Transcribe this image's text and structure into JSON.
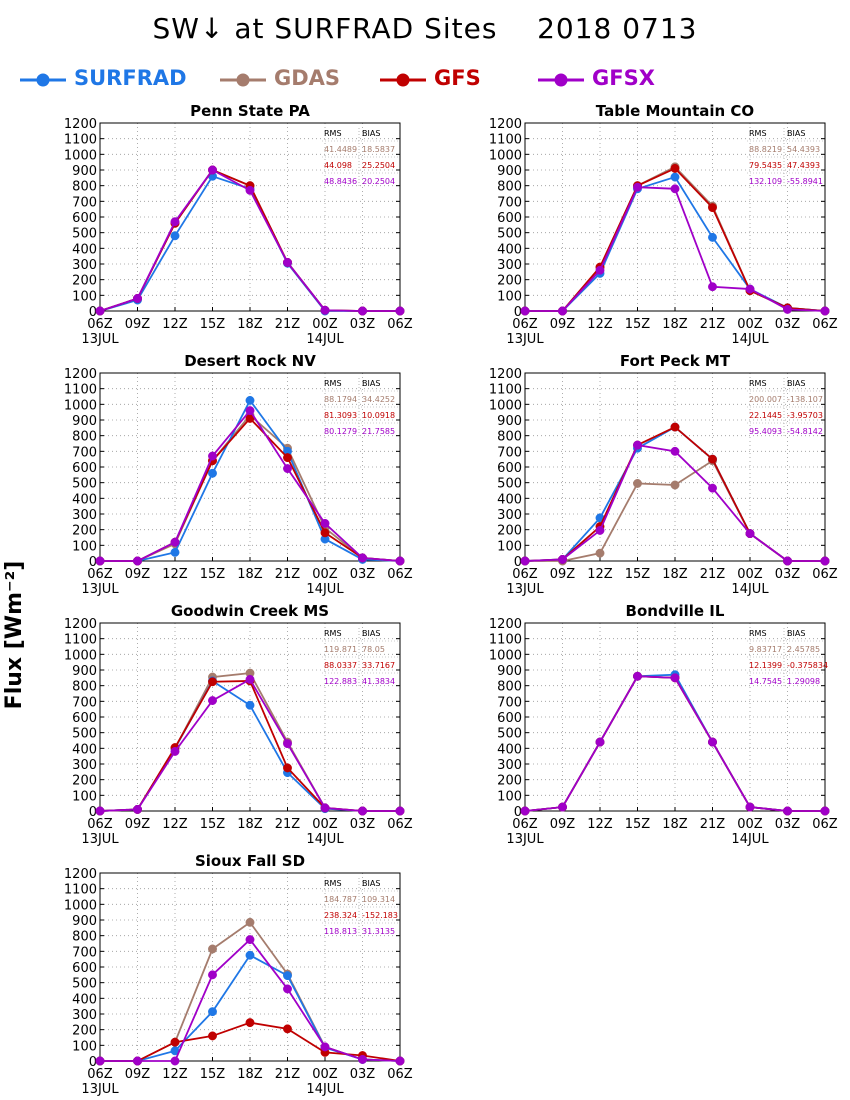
{
  "title": {
    "text": "SW↓ at SURFRAD Sites",
    "date": "2018 0713"
  },
  "ylabel": "Flux [Wm⁻²]",
  "colors": {
    "SURFRAD": "#1f77e6",
    "GDAS": "#a57c6d",
    "GFS": "#c00000",
    "GFSX": "#a000c8",
    "grid": "#999999"
  },
  "legend": [
    {
      "name": "SURFRAD",
      "color": "#1f77e6"
    },
    {
      "name": "GDAS",
      "color": "#a57c6d"
    },
    {
      "name": "GFS",
      "color": "#c00000"
    },
    {
      "name": "GFSX",
      "color": "#a000c8"
    }
  ],
  "stats_header": {
    "rms": "RMS",
    "bias": "BIAS"
  },
  "chart_data": [
    {
      "type": "line",
      "title": "Penn State PA",
      "x": [
        "06Z",
        "09Z",
        "12Z",
        "15Z",
        "18Z",
        "21Z",
        "00Z",
        "03Z",
        "06Z"
      ],
      "date_labels": [
        "13JUL",
        "14JUL"
      ],
      "yticks": [
        0,
        100,
        200,
        300,
        400,
        500,
        600,
        700,
        800,
        900,
        1000,
        1100,
        1200
      ],
      "ylim": [
        0,
        1200
      ],
      "grid": true,
      "series": [
        {
          "name": "SURFRAD",
          "values": [
            0,
            70,
            480,
            860,
            780,
            305,
            0,
            0,
            0
          ]
        },
        {
          "name": "GDAS",
          "values": [
            0,
            80,
            560,
            900,
            800,
            310,
            5,
            0,
            0
          ]
        },
        {
          "name": "GFS",
          "values": [
            0,
            80,
            560,
            900,
            800,
            310,
            5,
            0,
            0
          ]
        },
        {
          "name": "GFSX",
          "values": [
            0,
            80,
            570,
            900,
            770,
            310,
            5,
            0,
            0
          ]
        }
      ],
      "stats": [
        {
          "name": "GDAS",
          "rms": "41.4489",
          "bias": "18.5837"
        },
        {
          "name": "GFS",
          "rms": "44.098",
          "bias": "25.2504"
        },
        {
          "name": "GFSX",
          "rms": "48.8436",
          "bias": "20.2504"
        }
      ]
    },
    {
      "type": "line",
      "title": "Table Mountain CO",
      "x": [
        "06Z",
        "09Z",
        "12Z",
        "15Z",
        "18Z",
        "21Z",
        "00Z",
        "03Z",
        "06Z"
      ],
      "date_labels": [
        "13JUL",
        "14JUL"
      ],
      "yticks": [
        0,
        100,
        200,
        300,
        400,
        500,
        600,
        700,
        800,
        900,
        1000,
        1100,
        1200
      ],
      "ylim": [
        0,
        1200
      ],
      "grid": true,
      "series": [
        {
          "name": "SURFRAD",
          "values": [
            0,
            0,
            240,
            780,
            855,
            470,
            140,
            20,
            0
          ]
        },
        {
          "name": "GDAS",
          "values": [
            0,
            0,
            280,
            800,
            920,
            670,
            130,
            20,
            0
          ]
        },
        {
          "name": "GFS",
          "values": [
            0,
            0,
            280,
            800,
            910,
            660,
            130,
            20,
            0
          ]
        },
        {
          "name": "GFSX",
          "values": [
            0,
            0,
            260,
            790,
            780,
            155,
            140,
            10,
            0
          ]
        }
      ],
      "stats": [
        {
          "name": "GDAS",
          "rms": "88.8219",
          "bias": "54.4393"
        },
        {
          "name": "GFS",
          "rms": "79.5435",
          "bias": "47.4393"
        },
        {
          "name": "GFSX",
          "rms": "132.109",
          "bias": "-55.8941"
        }
      ]
    },
    {
      "type": "line",
      "title": "Desert Rock NV",
      "x": [
        "06Z",
        "09Z",
        "12Z",
        "15Z",
        "18Z",
        "21Z",
        "00Z",
        "03Z",
        "06Z"
      ],
      "date_labels": [
        "13JUL",
        "14JUL"
      ],
      "yticks": [
        0,
        100,
        200,
        300,
        400,
        500,
        600,
        700,
        800,
        900,
        1000,
        1100,
        1200
      ],
      "ylim": [
        0,
        1200
      ],
      "grid": true,
      "series": [
        {
          "name": "SURFRAD",
          "values": [
            0,
            0,
            55,
            560,
            1025,
            700,
            140,
            10,
            0
          ]
        },
        {
          "name": "GDAS",
          "values": [
            0,
            0,
            110,
            640,
            930,
            720,
            210,
            20,
            0
          ]
        },
        {
          "name": "GFS",
          "values": [
            0,
            0,
            120,
            640,
            910,
            660,
            180,
            20,
            0
          ]
        },
        {
          "name": "GFSX",
          "values": [
            0,
            0,
            120,
            670,
            960,
            590,
            240,
            20,
            0
          ]
        }
      ],
      "stats": [
        {
          "name": "GDAS",
          "rms": "88.1794",
          "bias": "34.4252"
        },
        {
          "name": "GFS",
          "rms": "81.3093",
          "bias": "10.0918"
        },
        {
          "name": "GFSX",
          "rms": "80.1279",
          "bias": "21.7585"
        }
      ]
    },
    {
      "type": "line",
      "title": "Fort Peck MT",
      "x": [
        "06Z",
        "09Z",
        "12Z",
        "15Z",
        "18Z",
        "21Z",
        "00Z",
        "03Z",
        "06Z"
      ],
      "date_labels": [
        "13JUL",
        "14JUL"
      ],
      "yticks": [
        0,
        100,
        200,
        300,
        400,
        500,
        600,
        700,
        800,
        900,
        1000,
        1100,
        1200
      ],
      "ylim": [
        0,
        1200
      ],
      "grid": true,
      "series": [
        {
          "name": "SURFRAD",
          "values": [
            0,
            10,
            275,
            720,
            855,
            650,
            175,
            0,
            0
          ]
        },
        {
          "name": "GDAS",
          "values": [
            0,
            0,
            50,
            495,
            485,
            640,
            175,
            0,
            0
          ]
        },
        {
          "name": "GFS",
          "values": [
            0,
            10,
            220,
            740,
            855,
            650,
            175,
            0,
            0
          ]
        },
        {
          "name": "GFSX",
          "values": [
            0,
            10,
            195,
            740,
            700,
            465,
            175,
            0,
            0
          ]
        }
      ],
      "stats": [
        {
          "name": "GDAS",
          "rms": "200.007",
          "bias": "-138.107"
        },
        {
          "name": "GFS",
          "rms": "22.1445",
          "bias": "-3.95703"
        },
        {
          "name": "GFSX",
          "rms": "95.4093",
          "bias": "-54.8142"
        }
      ]
    },
    {
      "type": "line",
      "title": "Goodwin Creek MS",
      "x": [
        "06Z",
        "09Z",
        "12Z",
        "15Z",
        "18Z",
        "21Z",
        "00Z",
        "03Z",
        "06Z"
      ],
      "date_labels": [
        "13JUL",
        "14JUL"
      ],
      "yticks": [
        0,
        100,
        200,
        300,
        400,
        500,
        600,
        700,
        800,
        900,
        1000,
        1100,
        1200
      ],
      "ylim": [
        0,
        1200
      ],
      "grid": true,
      "series": [
        {
          "name": "SURFRAD",
          "values": [
            0,
            10,
            400,
            830,
            675,
            245,
            15,
            0,
            0
          ]
        },
        {
          "name": "GDAS",
          "values": [
            0,
            10,
            400,
            855,
            880,
            440,
            20,
            0,
            0
          ]
        },
        {
          "name": "GFS",
          "values": [
            0,
            10,
            405,
            825,
            830,
            275,
            20,
            0,
            0
          ]
        },
        {
          "name": "GFSX",
          "values": [
            0,
            10,
            380,
            705,
            840,
            430,
            20,
            0,
            0
          ]
        }
      ],
      "stats": [
        {
          "name": "GDAS",
          "rms": "119.871",
          "bias": "78.05"
        },
        {
          "name": "GFS",
          "rms": "88.0337",
          "bias": "33.7167"
        },
        {
          "name": "GFSX",
          "rms": "122.883",
          "bias": "41.3834"
        }
      ]
    },
    {
      "type": "line",
      "title": "Bondville IL",
      "x": [
        "06Z",
        "09Z",
        "12Z",
        "15Z",
        "18Z",
        "21Z",
        "00Z",
        "03Z",
        "06Z"
      ],
      "date_labels": [
        "13JUL",
        "14JUL"
      ],
      "yticks": [
        0,
        100,
        200,
        300,
        400,
        500,
        600,
        700,
        800,
        900,
        1000,
        1100,
        1200
      ],
      "ylim": [
        0,
        1200
      ],
      "grid": true,
      "series": [
        {
          "name": "SURFRAD",
          "values": [
            0,
            25,
            440,
            860,
            870,
            440,
            25,
            0,
            0
          ]
        },
        {
          "name": "GDAS",
          "values": [
            0,
            25,
            440,
            860,
            850,
            440,
            25,
            0,
            0
          ]
        },
        {
          "name": "GFS",
          "values": [
            0,
            25,
            440,
            860,
            850,
            440,
            25,
            0,
            0
          ]
        },
        {
          "name": "GFSX",
          "values": [
            0,
            25,
            440,
            860,
            850,
            440,
            25,
            0,
            0
          ]
        }
      ],
      "stats": [
        {
          "name": "GDAS",
          "rms": "9.83717",
          "bias": "2.45785"
        },
        {
          "name": "GFS",
          "rms": "12.1399",
          "bias": "-0.375834"
        },
        {
          "name": "GFSX",
          "rms": "14.7545",
          "bias": "1.29098"
        }
      ]
    },
    {
      "type": "line",
      "title": "Sioux Fall SD",
      "x": [
        "06Z",
        "09Z",
        "12Z",
        "15Z",
        "18Z",
        "21Z",
        "00Z",
        "03Z",
        "06Z"
      ],
      "date_labels": [
        "13JUL",
        "14JUL"
      ],
      "yticks": [
        0,
        100,
        200,
        300,
        400,
        500,
        600,
        700,
        800,
        900,
        1000,
        1100,
        1200
      ],
      "ylim": [
        0,
        1200
      ],
      "grid": true,
      "series": [
        {
          "name": "SURFRAD",
          "values": [
            0,
            0,
            65,
            315,
            675,
            545,
            85,
            10,
            0
          ]
        },
        {
          "name": "GDAS",
          "values": [
            0,
            0,
            120,
            715,
            885,
            555,
            90,
            10,
            0
          ]
        },
        {
          "name": "GFS",
          "values": [
            0,
            0,
            120,
            160,
            245,
            205,
            55,
            35,
            0
          ]
        },
        {
          "name": "GFSX",
          "values": [
            0,
            0,
            0,
            550,
            775,
            460,
            90,
            10,
            0
          ]
        }
      ],
      "stats": [
        {
          "name": "GDAS",
          "rms": "184.787",
          "bias": "109.314"
        },
        {
          "name": "GFS",
          "rms": "238.324",
          "bias": "-152.183"
        },
        {
          "name": "GFSX",
          "rms": "118.813",
          "bias": "31.3135"
        }
      ]
    }
  ]
}
